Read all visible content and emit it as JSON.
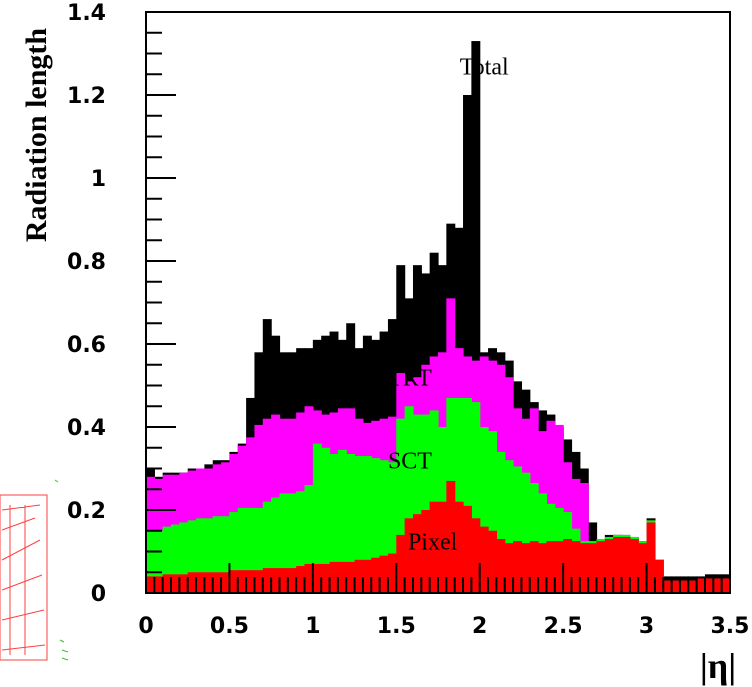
{
  "chart_data": {
    "type": "area",
    "stacked": true,
    "xlabel": "|η|",
    "ylabel": "Radiation length",
    "xlim": [
      0,
      3.5
    ],
    "ylim": [
      0,
      1.4
    ],
    "x_tick_labels": [
      "0",
      "0.5",
      "1",
      "1.5",
      "2",
      "2.5",
      "3",
      "3.5"
    ],
    "x_tick_values": [
      0,
      0.5,
      1,
      1.5,
      2,
      2.5,
      3,
      3.5
    ],
    "y_tick_labels": [
      "0",
      "0.2",
      "0.4",
      "0.6",
      "0.8",
      "1",
      "1.2",
      "1.4"
    ],
    "y_tick_values": [
      0,
      0.2,
      0.4,
      0.6,
      0.8,
      1.0,
      1.2,
      1.4
    ],
    "bin_width": 0.05,
    "x_bin_edges_start": [
      0.0,
      0.05,
      0.1,
      0.15,
      0.2,
      0.25,
      0.3,
      0.35,
      0.4,
      0.45,
      0.5,
      0.55,
      0.6,
      0.65,
      0.7,
      0.75,
      0.8,
      0.85,
      0.9,
      0.95,
      1.0,
      1.05,
      1.1,
      1.15,
      1.2,
      1.25,
      1.3,
      1.35,
      1.4,
      1.45,
      1.5,
      1.55,
      1.6,
      1.65,
      1.7,
      1.75,
      1.8,
      1.85,
      1.9,
      1.95,
      2.0,
      2.05,
      2.1,
      2.15,
      2.2,
      2.25,
      2.3,
      2.35,
      2.4,
      2.45,
      2.5,
      2.55,
      2.6,
      2.65,
      2.7,
      2.75,
      2.8,
      2.85,
      2.9,
      2.95,
      3.0,
      3.05,
      3.1,
      3.15,
      3.2,
      3.25,
      3.3,
      3.35,
      3.4,
      3.45
    ],
    "series": [
      {
        "name": "Pixel",
        "color": "#ff0000",
        "values": [
          0.04,
          0.04,
          0.045,
          0.045,
          0.045,
          0.05,
          0.05,
          0.05,
          0.05,
          0.05,
          0.055,
          0.055,
          0.055,
          0.055,
          0.06,
          0.06,
          0.06,
          0.06,
          0.065,
          0.07,
          0.07,
          0.07,
          0.075,
          0.075,
          0.075,
          0.08,
          0.08,
          0.085,
          0.09,
          0.095,
          0.14,
          0.18,
          0.19,
          0.2,
          0.22,
          0.22,
          0.27,
          0.22,
          0.21,
          0.18,
          0.16,
          0.15,
          0.13,
          0.12,
          0.125,
          0.12,
          0.125,
          0.12,
          0.125,
          0.125,
          0.13,
          0.125,
          0.12,
          0.12,
          0.125,
          0.13,
          0.135,
          0.135,
          0.13,
          0.12,
          0.17,
          0.08,
          0.03,
          0.03,
          0.03,
          0.03,
          0.035,
          0.035,
          0.035,
          0.035
        ]
      },
      {
        "name": "SCT",
        "color": "#00ff00",
        "values": [
          0.11,
          0.11,
          0.115,
          0.12,
          0.125,
          0.125,
          0.13,
          0.13,
          0.135,
          0.135,
          0.14,
          0.15,
          0.15,
          0.15,
          0.16,
          0.17,
          0.18,
          0.18,
          0.18,
          0.19,
          0.29,
          0.28,
          0.26,
          0.27,
          0.26,
          0.25,
          0.25,
          0.24,
          0.23,
          0.22,
          0.28,
          0.27,
          0.24,
          0.23,
          0.22,
          0.18,
          0.2,
          0.25,
          0.26,
          0.28,
          0.24,
          0.24,
          0.21,
          0.2,
          0.18,
          0.17,
          0.14,
          0.12,
          0.09,
          0.08,
          0.065,
          0.03,
          0.005,
          0.005,
          0.005,
          0.005,
          0.005,
          0.005,
          0.005,
          0.005,
          0.005,
          0.0,
          0.0,
          0.0,
          0.0,
          0.0,
          0.0,
          0.0,
          0.0,
          0.0
        ]
      },
      {
        "name": "TRT",
        "color": "#ff00ff",
        "values": [
          0.13,
          0.125,
          0.125,
          0.12,
          0.12,
          0.12,
          0.12,
          0.12,
          0.125,
          0.13,
          0.14,
          0.15,
          0.17,
          0.2,
          0.2,
          0.2,
          0.18,
          0.18,
          0.19,
          0.19,
          0.08,
          0.08,
          0.1,
          0.1,
          0.11,
          0.09,
          0.08,
          0.09,
          0.1,
          0.11,
          0.11,
          0.06,
          0.09,
          0.12,
          0.13,
          0.18,
          0.24,
          0.12,
          0.1,
          0.1,
          0.17,
          0.17,
          0.21,
          0.2,
          0.14,
          0.13,
          0.18,
          0.15,
          0.2,
          0.2,
          0.12,
          0.12,
          0.14,
          0.0,
          0.0,
          0.0,
          0.0,
          0.0,
          0.0,
          0.0,
          0.0,
          0.0,
          0.0,
          0.0,
          0.0,
          0.0,
          0.0,
          0.0,
          0.0,
          0.0
        ]
      }
    ],
    "total": {
      "name": "Total",
      "color": "#000000",
      "values": [
        0.3,
        0.28,
        0.29,
        0.29,
        0.29,
        0.3,
        0.3,
        0.31,
        0.32,
        0.32,
        0.34,
        0.36,
        0.47,
        0.58,
        0.66,
        0.62,
        0.58,
        0.58,
        0.59,
        0.59,
        0.61,
        0.62,
        0.63,
        0.61,
        0.65,
        0.59,
        0.62,
        0.61,
        0.63,
        0.66,
        0.79,
        0.71,
        0.79,
        0.77,
        0.82,
        0.79,
        0.89,
        0.88,
        1.2,
        1.33,
        0.58,
        0.59,
        0.58,
        0.56,
        0.51,
        0.49,
        0.46,
        0.44,
        0.43,
        0.4,
        0.37,
        0.34,
        0.3,
        0.17,
        0.13,
        0.14,
        0.14,
        0.135,
        0.135,
        0.125,
        0.18,
        0.08,
        0.04,
        0.04,
        0.04,
        0.04,
        0.04,
        0.045,
        0.045,
        0.045
      ]
    },
    "annotations": [
      {
        "text": "Total",
        "x": 1.88,
        "y": 1.25
      },
      {
        "text": "TRT",
        "x": 1.45,
        "y": 0.5
      },
      {
        "text": "SCT",
        "x": 1.45,
        "y": 0.3
      },
      {
        "text": "Pixel",
        "x": 1.57,
        "y": 0.105
      }
    ]
  }
}
